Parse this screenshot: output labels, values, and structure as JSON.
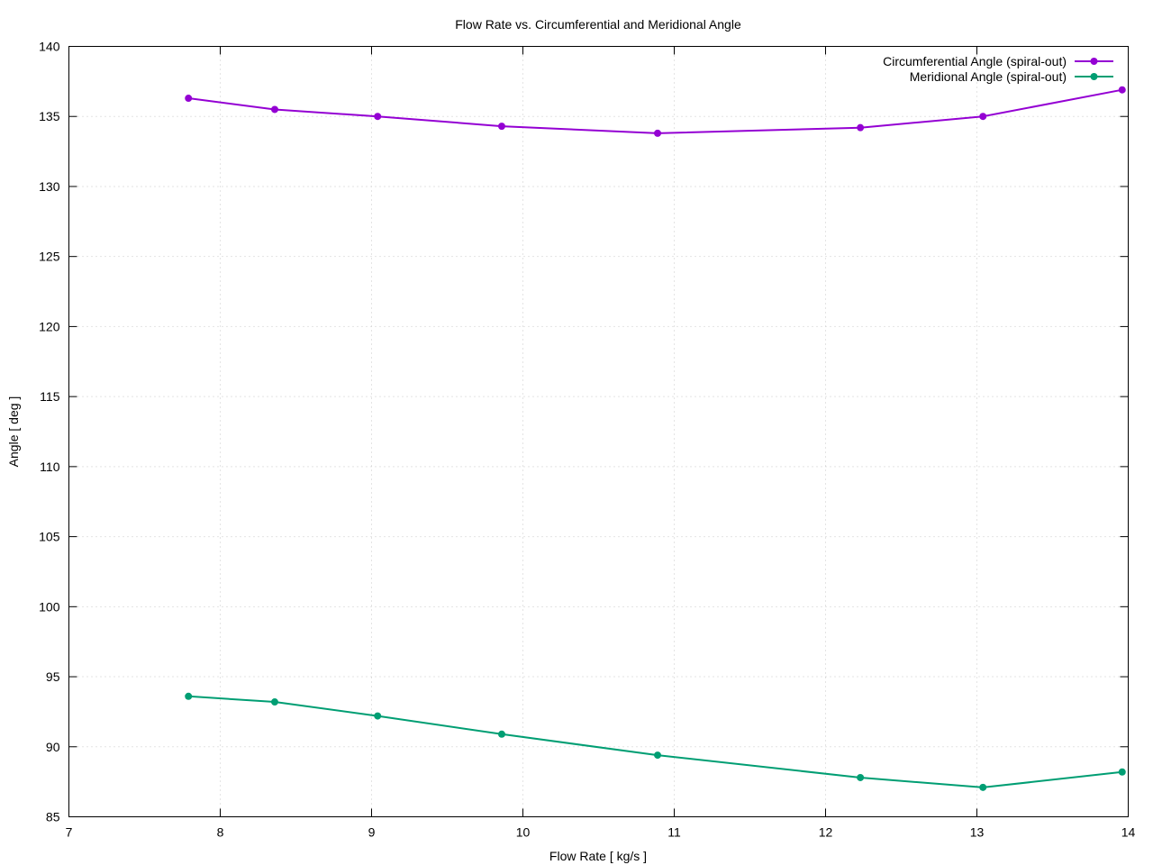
{
  "chart_data": {
    "type": "line",
    "title": "Flow Rate vs. Circumferential and Meridional Angle",
    "xlabel": "Flow Rate [ kg/s ]",
    "ylabel": "Angle [ deg ]",
    "xlim": [
      7,
      14
    ],
    "ylim": [
      85,
      140
    ],
    "xticks": [
      7,
      8,
      9,
      10,
      11,
      12,
      13,
      14
    ],
    "yticks": [
      85,
      90,
      95,
      100,
      105,
      110,
      115,
      120,
      125,
      130,
      135,
      140
    ],
    "grid": true,
    "legend_position": "top-right",
    "series": [
      {
        "name": "Circumferential Angle (spiral-out)",
        "color": "#9400d3",
        "marker": "circle",
        "x": [
          7.79,
          8.36,
          9.04,
          9.86,
          10.89,
          12.23,
          13.04,
          13.96
        ],
        "y": [
          136.3,
          135.5,
          135.0,
          134.3,
          133.8,
          134.2,
          135.0,
          136.9
        ]
      },
      {
        "name": "Meridional Angle (spiral-out)",
        "color": "#009e73",
        "marker": "circle",
        "x": [
          7.79,
          8.36,
          9.04,
          9.86,
          10.89,
          12.23,
          13.04,
          13.96
        ],
        "y": [
          93.6,
          93.2,
          92.2,
          90.9,
          89.4,
          87.8,
          87.1,
          88.2
        ]
      }
    ]
  }
}
